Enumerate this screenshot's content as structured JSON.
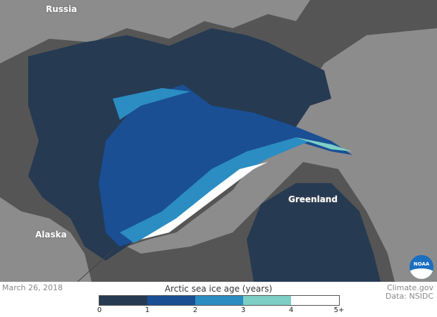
{
  "labels": {
    "russia": "Russia",
    "greenland": "Greenland",
    "alaska": "Alaska"
  },
  "date": "March 26, 2018",
  "credit": "Climate.gov",
  "source": "Data: NSIDC",
  "logo": "NOAA",
  "legend": {
    "title": "Arctic sea ice age (years)",
    "ticks": [
      "0",
      "1",
      "2",
      "3",
      "4",
      "5+"
    ],
    "colors": [
      "#263a52",
      "#1a4f94",
      "#2b8dc2",
      "#7ecfc6",
      "#ffffff"
    ]
  },
  "colors": {
    "land": "#8c8c8c",
    "open_water": "#555555",
    "first_year_ice": "#263a52"
  }
}
